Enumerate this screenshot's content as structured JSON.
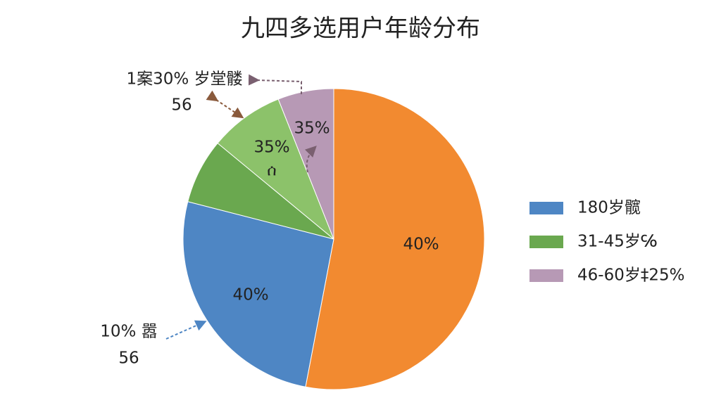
{
  "chart_data": {
    "type": "pie",
    "title": "九四多选用户年龄分布",
    "categories": [
      null,
      "180岁髋",
      "31-45岁℅",
      null,
      "46-60岁‡25%"
    ],
    "values": [
      53,
      26,
      7,
      8,
      6
    ],
    "colors": [
      "#f28a30",
      "#4e86c4",
      "#6aa84f",
      "#8cc26a",
      "#b799b5"
    ],
    "legend": "right",
    "annotations": [
      "40%",
      "40%",
      "35%",
      "ሰ",
      "35%",
      "1案30% 岁堂髅",
      "56",
      "10% 嚣",
      "56"
    ]
  }
}
